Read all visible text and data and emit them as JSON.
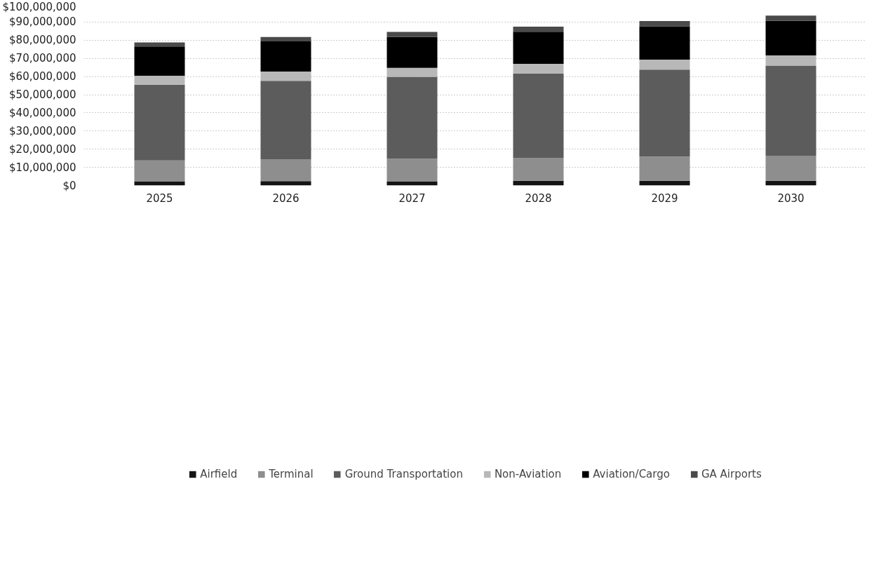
{
  "chart_data": {
    "type": "bar",
    "stacked": true,
    "categories": [
      "2025",
      "2026",
      "2027",
      "2028",
      "2029",
      "2030"
    ],
    "series": [
      {
        "name": "Airfield",
        "color": "#141414",
        "values": [
          2300000,
          2400000,
          2300000,
          2600000,
          2600000,
          2600000
        ]
      },
      {
        "name": "Terminal",
        "color": "#8e8e8e",
        "values": [
          11500000,
          11900000,
          12500000,
          12500000,
          13300000,
          13800000
        ]
      },
      {
        "name": "Ground Transportation",
        "color": "#5c5c5c",
        "values": [
          41700000,
          43300000,
          45000000,
          46600000,
          47900000,
          49600000
        ]
      },
      {
        "name": "Non-Aviation",
        "color": "#b8b8b8",
        "values": [
          4900000,
          5100000,
          5000000,
          5300000,
          5500000,
          5600000
        ]
      },
      {
        "name": "Aviation/Cargo",
        "color": "#000000",
        "values": [
          16100000,
          16600000,
          17000000,
          17700000,
          18300000,
          19000000
        ]
      },
      {
        "name": "GA Airports",
        "color": "#4a4a4a",
        "values": [
          2300000,
          2500000,
          2800000,
          2800000,
          2900000,
          2900000
        ]
      }
    ],
    "ylim": [
      0,
      100000000
    ],
    "yticks": [
      {
        "value": 0,
        "label": "$0"
      },
      {
        "value": 10000000,
        "label": "$10,000,000"
      },
      {
        "value": 20000000,
        "label": "$20,000,000"
      },
      {
        "value": 30000000,
        "label": "$30,000,000"
      },
      {
        "value": 40000000,
        "label": "$40,000,000"
      },
      {
        "value": 50000000,
        "label": "$50,000,000"
      },
      {
        "value": 60000000,
        "label": "$60,000,000"
      },
      {
        "value": 70000000,
        "label": "$70,000,000"
      },
      {
        "value": 80000000,
        "label": "$80,000,000"
      },
      {
        "value": 90000000,
        "label": "$90,000,000"
      },
      {
        "value": 100000000,
        "label": "$100,000,000"
      }
    ],
    "grid": "y",
    "legend": "bottom"
  }
}
